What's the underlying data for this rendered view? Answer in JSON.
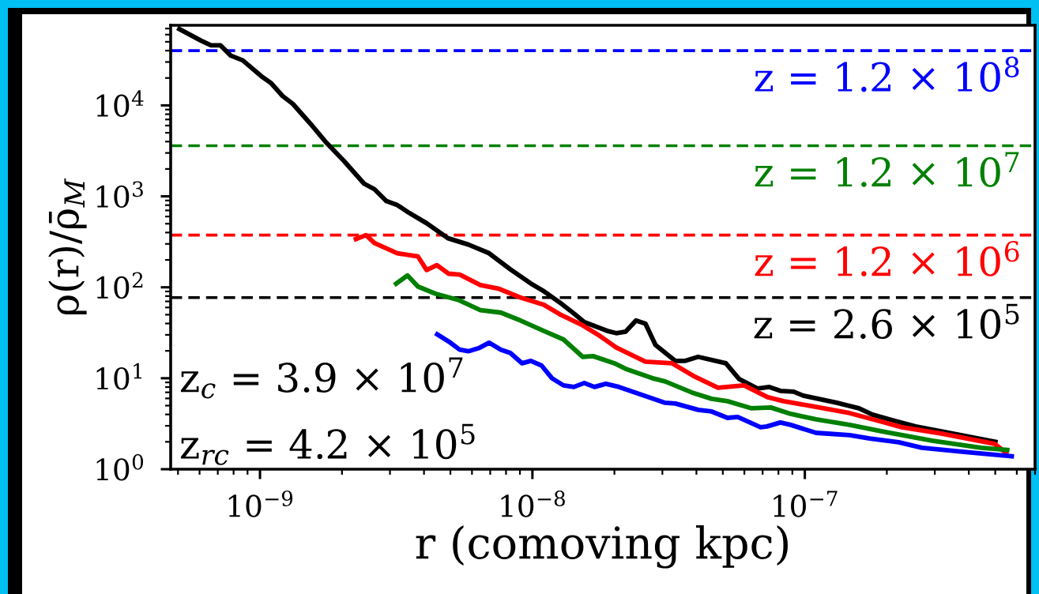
{
  "chart_data": {
    "type": "line",
    "xlabel": "r (comoving kpc)",
    "ylabel": "ρ(r)/ρ̄$_{M}$",
    "log": "xy",
    "grid": false,
    "line_style": "solid",
    "marker": "none",
    "xlim": [
      4.7e-10,
      7e-07
    ],
    "ylim": [
      1,
      76000
    ],
    "xticks": [
      {
        "value": 1e-09,
        "label": "10$^{−9}$"
      },
      {
        "value": 1e-08,
        "label": "10$^{−8}$"
      },
      {
        "value": 1e-07,
        "label": "10$^{−7}$"
      }
    ],
    "yticks": [
      {
        "value": 1,
        "label": "10$^{0}$"
      },
      {
        "value": 10,
        "label": "10$^{1}$"
      },
      {
        "value": 100,
        "label": "10$^{2}$"
      },
      {
        "value": 1000,
        "label": "10$^{3}$"
      },
      {
        "value": 10000,
        "label": "10$^{4}$"
      }
    ],
    "series": [
      {
        "color": "#000000",
        "x": [
          4.97e-10,
          6.07e-10,
          6.61e-10,
          7.16e-10,
          7.81e-10,
          8.64e-10,
          1.01e-09,
          1.1e-09,
          1.21e-09,
          1.32e-09,
          1.53e-09,
          1.74e-09,
          2.03e-09,
          2.41e-09,
          2.63e-09,
          2.91e-09,
          3.19e-09,
          3.53e-09,
          4.09e-09,
          4.9e-09,
          5.82e-09,
          6.93e-09,
          8.29e-09,
          9.87e-09,
          1.09e-08,
          1.28e-08,
          1.43e-08,
          1.55e-08,
          1.88e-08,
          2.03e-08,
          2.2e-08,
          2.4e-08,
          2.6e-08,
          2.83e-08,
          3.35e-08,
          3.62e-08,
          4.06e-08,
          5.13e-08,
          5.74e-08,
          6.7e-08,
          7.41e-08,
          8.13e-08,
          9.1e-08,
          9.87e-08,
          1.31e-07,
          1.58e-07,
          1.77e-07,
          2.15e-07,
          2.55e-07,
          3.37e-07,
          5.1e-07
        ],
        "values": [
          71100,
          51600,
          45800,
          45800,
          35300,
          31300,
          21000,
          17500,
          12700,
          10400,
          6310,
          3980,
          2460,
          1380,
          1200,
          887,
          802,
          657,
          506,
          346,
          295,
          237,
          158,
          110,
          92.3,
          65.7,
          50.6,
          41.4,
          33.2,
          31.3,
          32.6,
          43.1,
          39.8,
          23.2,
          15.5,
          15.5,
          17.2,
          14.6,
          9.8,
          7.71,
          8.02,
          7.26,
          7.11,
          6.44,
          5.37,
          4.68,
          3.98,
          3.39,
          2.95,
          2.51,
          1.98
        ]
      },
      {
        "color": "#ff0000",
        "x": [
          2.21e-09,
          2.45e-09,
          2.63e-09,
          3.19e-09,
          3.8e-09,
          4.09e-09,
          4.46e-09,
          4.93e-09,
          5.41e-09,
          6.44e-09,
          7.55e-09,
          9.05e-09,
          1.1e-08,
          1.26e-08,
          1.51e-08,
          1.76e-08,
          2.03e-08,
          2.6e-08,
          3.26e-08,
          3.95e-08,
          4.8e-08,
          5.98e-08,
          7.31e-08,
          8.35e-08,
          1.05e-07,
          1.46e-07,
          1.92e-07,
          2.27e-07,
          3.17e-07,
          4.97e-07,
          5.56e-07
        ],
        "values": [
          332,
          375,
          307,
          237,
          218,
          155,
          175,
          141,
          138,
          106,
          96.1,
          77.1,
          64.4,
          50.6,
          39.0,
          29.5,
          21.8,
          15.2,
          14.6,
          10.4,
          7.87,
          8.35,
          6.18,
          5.6,
          4.96,
          4.14,
          3.32,
          2.89,
          2.46,
          1.9,
          1.46
        ]
      },
      {
        "color": "#008000",
        "x": [
          3.11e-09,
          3.48e-09,
          3.8e-09,
          4.4e-09,
          5.34e-09,
          6.44e-09,
          7.66e-09,
          9.05e-09,
          1.1e-08,
          1.3e-08,
          1.53e-08,
          1.67e-08,
          2e-08,
          2.2e-08,
          2.76e-08,
          3.07e-08,
          3.85e-08,
          4.55e-08,
          5.2e-08,
          6.35e-08,
          7.5e-08,
          8.87e-08,
          1.1e-07,
          1.46e-07,
          1.92e-07,
          2.93e-07,
          4.43e-07,
          5.64e-07
        ],
        "values": [
          106,
          135,
          102,
          85.2,
          72.6,
          56.0,
          52.7,
          43.1,
          33.2,
          26.7,
          17.2,
          17.5,
          14.6,
          12.7,
          10.0,
          9.23,
          6.97,
          5.94,
          5.6,
          4.68,
          4.77,
          4.06,
          3.53,
          3.07,
          2.61,
          2.06,
          1.72,
          1.62
        ]
      },
      {
        "color": "#0000ff",
        "x": [
          4.4e-09,
          5e-09,
          5.41e-09,
          5.82e-09,
          6.35e-09,
          6.93e-09,
          7.66e-09,
          8.29e-09,
          9.17e-09,
          9.87e-09,
          1.08e-08,
          1.18e-08,
          1.3e-08,
          1.42e-08,
          1.55e-08,
          1.69e-08,
          1.86e-08,
          2.08e-08,
          3.07e-08,
          3.35e-08,
          4.06e-08,
          4.55e-08,
          5.2e-08,
          5.67e-08,
          6.88e-08,
          7.26e-08,
          8.13e-08,
          8.87e-08,
          1.1e-07,
          1.46e-07,
          1.73e-07,
          2.21e-07,
          2.69e-07,
          3.85e-07,
          5.86e-07
        ],
        "values": [
          31.3,
          24.6,
          20.6,
          19.8,
          21.4,
          24.6,
          20.6,
          19.0,
          14.6,
          15.5,
          13.8,
          10.0,
          8.35,
          8.02,
          8.87,
          8.02,
          8.69,
          8.02,
          5.37,
          5.27,
          4.49,
          4.31,
          3.67,
          3.75,
          2.89,
          2.95,
          3.26,
          3.07,
          2.51,
          2.37,
          2.18,
          1.98,
          1.72,
          1.55,
          1.38
        ]
      }
    ],
    "ref_lines": [
      {
        "axis": "y",
        "value": 40000,
        "color": "#0000ff",
        "line_style": "dashed"
      },
      {
        "axis": "y",
        "value": 3600,
        "color": "#008000",
        "line_style": "dashed"
      },
      {
        "axis": "y",
        "value": 375,
        "color": "#ff0000",
        "line_style": "dashed"
      },
      {
        "axis": "y",
        "value": 77,
        "color": "#000000",
        "line_style": "dashed"
      }
    ],
    "annotations": [
      {
        "text": "z = 1.2 × 10$^{8}$",
        "y": 40000
      },
      {
        "text": "z = 1.2 × 10$^{7}$",
        "y": 3600
      },
      {
        "text": "z = 1.2 × 10$^{6}$",
        "y": 375
      },
      {
        "text": "z = 2.6 × 10$^{5}$",
        "y": 77
      },
      "z$_{c}$ = 3.9 × 10$^{7}$",
      "z$_{rc}$ = 4.2 × 10$^{5}$"
    ]
  }
}
